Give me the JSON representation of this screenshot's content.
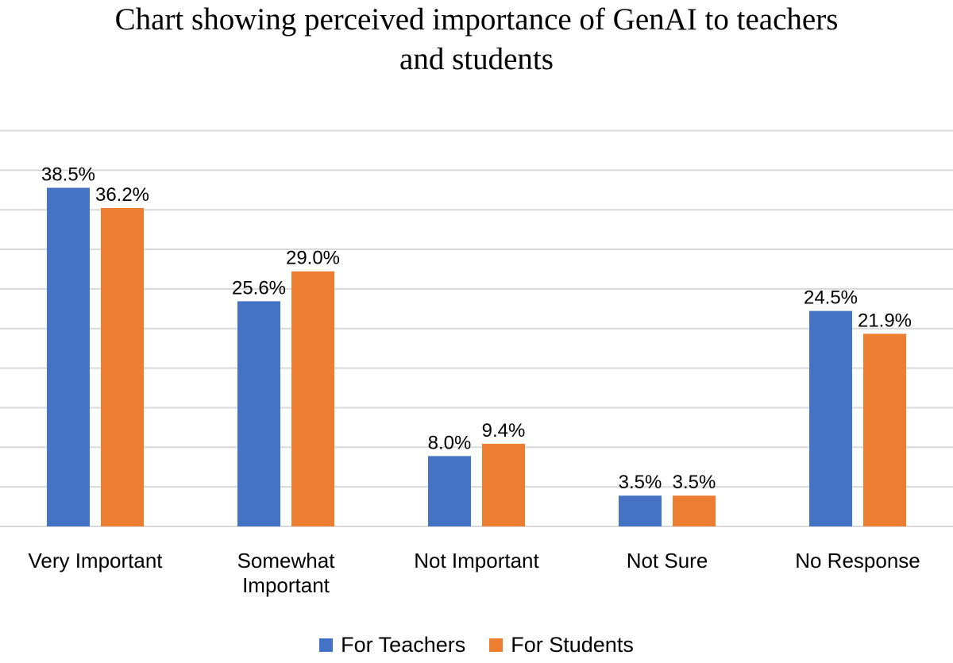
{
  "chart_data": {
    "type": "bar",
    "title_lines": [
      "Chart showing perceived importance of GenAI to teachers",
      "and students"
    ],
    "categories": [
      [
        "Very Important"
      ],
      [
        "Somewhat",
        "Important"
      ],
      [
        "Not Important"
      ],
      [
        "Not Sure"
      ],
      [
        "No Response"
      ]
    ],
    "series": [
      {
        "name": "For Teachers",
        "color": "#4472C4",
        "values": [
          38.5,
          25.6,
          8.0,
          3.5,
          24.5
        ],
        "labels": [
          "38.5%",
          "25.6%",
          "8.0%",
          "3.5%",
          "24.5%"
        ]
      },
      {
        "name": "For Students",
        "color": "#ED7D31",
        "values": [
          36.2,
          29.0,
          9.4,
          3.5,
          21.9
        ],
        "labels": [
          "36.2%",
          "29.0%",
          "9.4%",
          "3.5%",
          "21.9%"
        ]
      }
    ],
    "ylim": [
      0,
      45
    ],
    "grid_step": 4.5,
    "grid": true,
    "legend_position": "bottom"
  }
}
